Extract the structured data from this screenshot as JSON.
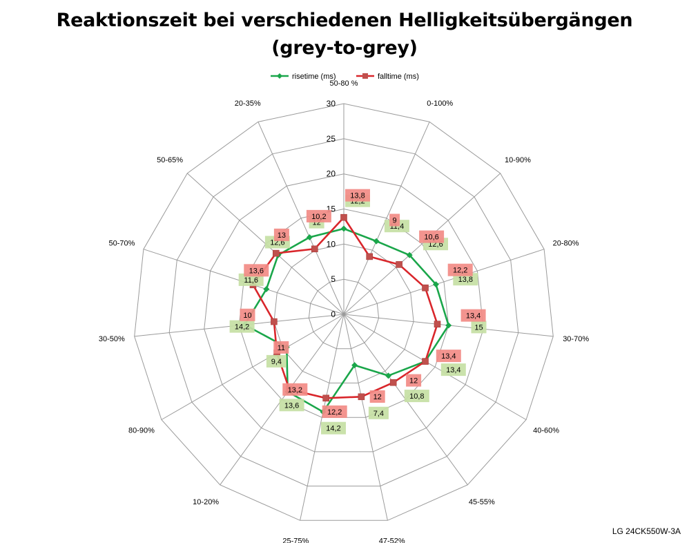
{
  "title": {
    "line1": "Reaktionszeit bei verschiedenen Helligkeitsübergängen",
    "line2": "(grey-to-grey)"
  },
  "footer": "LG 24CK550W-3A",
  "chart_data": {
    "type": "radar",
    "title": "Reaktionszeit bei verschiedenen Helligkeitsübergängen (grey-to-grey)",
    "categories": [
      "50-80 %",
      "0-100%",
      "10-90%",
      "20-80%",
      "30-70%",
      "40-60%",
      "45-55%",
      "47-52%",
      "25-75%",
      "10-20%",
      "80-90%",
      "30-50%",
      "50-70%",
      "50-65%",
      "20-35%"
    ],
    "axis_ticks": [
      0,
      5,
      10,
      15,
      20,
      25,
      30
    ],
    "range": [
      0,
      30
    ],
    "legend_position": "top",
    "series": [
      {
        "name": "risetime (ms)",
        "color": "#1aa64a",
        "marker": "diamond",
        "label_bg": "#c6e0a4",
        "values": [
          12.2,
          11.4,
          12.6,
          13.8,
          15,
          13.4,
          10.8,
          7.4,
          14.2,
          13.6,
          9.4,
          14.2,
          11.6,
          12.6,
          12
        ]
      },
      {
        "name": "falltime (ms)",
        "color": "#d9262b",
        "marker": "square",
        "label_bg": "#f28b85",
        "values": [
          13.8,
          9,
          10.6,
          12.2,
          13.4,
          13.4,
          12,
          12,
          12.2,
          13.2,
          11,
          10,
          13.6,
          13,
          10.2
        ]
      }
    ]
  }
}
